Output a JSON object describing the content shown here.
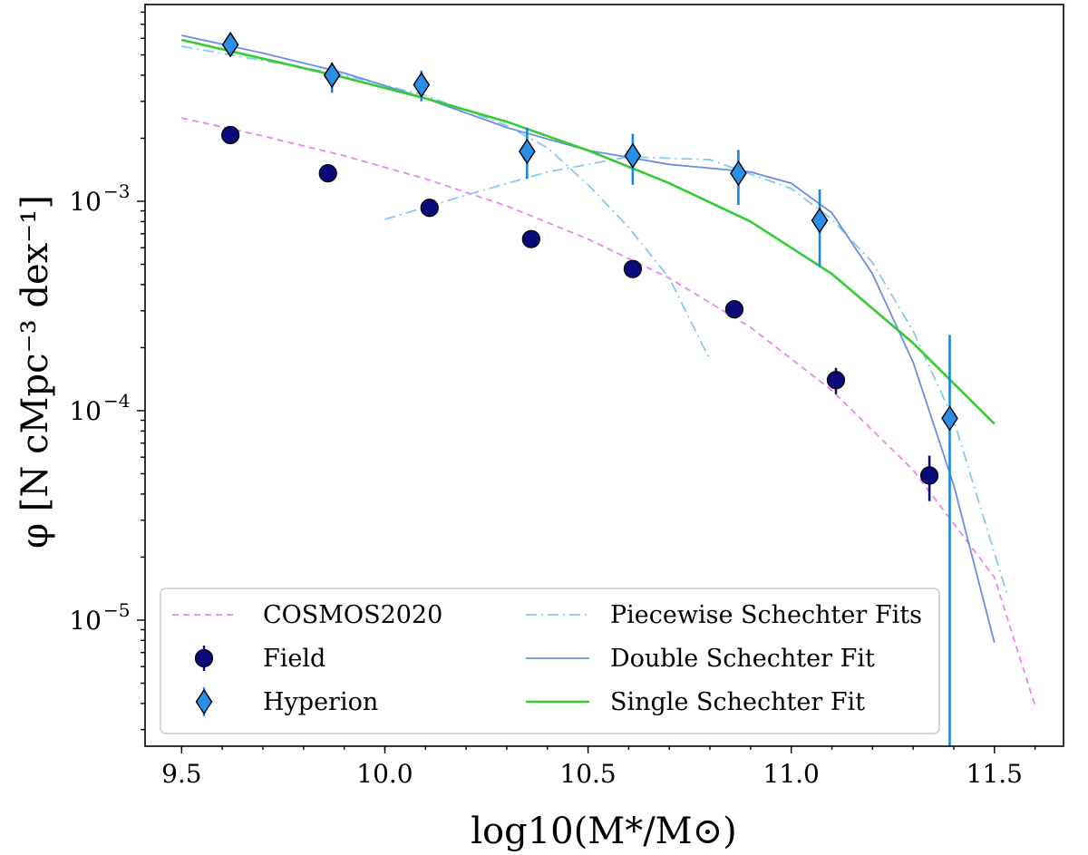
{
  "chart_data": {
    "type": "scatter",
    "title": "",
    "xlabel": "log10(M*/M⊙)",
    "ylabel": "φ [N cMpc⁻³ dex⁻¹]",
    "x_ticks": [
      9.5,
      10.0,
      10.5,
      11.0,
      11.5
    ],
    "x_tick_labels": [
      "9.5",
      "10.0",
      "10.5",
      "11.0",
      "11.5"
    ],
    "y_ticks": [
      1e-05,
      0.0001,
      0.001
    ],
    "y_tick_labels": [
      "10",
      "10",
      "10"
    ],
    "y_tick_exponents": [
      "−5",
      "−4",
      "−3"
    ],
    "xlim": [
      9.41,
      11.67
    ],
    "ylim": [
      2.5e-06,
      0.0087
    ],
    "y_scale": "log",
    "grid": false,
    "legend_position": "lower-left",
    "series": [
      {
        "name": "Field",
        "kind": "points",
        "marker": "circle",
        "color": "#0a0a7a",
        "x": [
          9.62,
          9.86,
          10.11,
          10.36,
          10.61,
          10.86,
          11.11,
          11.34
        ],
        "y": [
          0.00207,
          0.00136,
          0.00093,
          0.00066,
          0.000475,
          0.000305,
          0.00014,
          4.9e-05
        ],
        "y_err_low": [
          3e-05,
          3e-05,
          3e-05,
          2e-05,
          2e-05,
          1e-05,
          2e-05,
          1.2e-05
        ],
        "y_err_high": [
          3e-05,
          3e-05,
          3e-05,
          2e-05,
          2e-05,
          1e-05,
          2e-05,
          1.2e-05
        ]
      },
      {
        "name": "Hyperion",
        "kind": "points",
        "marker": "diamond",
        "color": "#2b8ee8",
        "err_color": "#1a86e0",
        "x": [
          9.62,
          9.87,
          10.09,
          10.35,
          10.61,
          10.87,
          11.07,
          11.39
        ],
        "y": [
          0.0056,
          0.004,
          0.0036,
          0.00173,
          0.00165,
          0.00136,
          0.00081,
          9.2e-05
        ],
        "y_err_low": [
          0.0006,
          0.0007,
          0.0006,
          0.00045,
          0.00045,
          0.0004,
          0.00032,
          9.1e-05
        ],
        "y_err_high": [
          0.0006,
          0.0006,
          0.0006,
          0.00052,
          0.00045,
          0.0004,
          0.00033,
          0.000138
        ]
      },
      {
        "name": "COSMOS2020",
        "kind": "line",
        "style": "dashed",
        "color": "#ee82ee",
        "x": [
          9.5,
          9.7,
          9.9,
          10.1,
          10.3,
          10.5,
          10.7,
          10.9,
          11.1,
          11.3,
          11.5,
          11.6
        ],
        "y": [
          0.0025,
          0.00205,
          0.00165,
          0.00128,
          0.00095,
          0.00066,
          0.00043,
          0.00025,
          0.000125,
          5.2e-05,
          1.6e-05,
          3.9e-06
        ]
      },
      {
        "name": "Piecewise Schechter Fits",
        "kind": "line",
        "style": "dashdot",
        "color": "#87c8ee",
        "x": [
          9.5,
          9.7,
          9.9,
          10.1,
          10.3,
          10.4,
          10.5,
          10.6,
          10.7,
          10.8
        ],
        "y": [
          0.0055,
          0.0047,
          0.004,
          0.0032,
          0.0023,
          0.0018,
          0.0012,
          0.00075,
          0.00043,
          0.000175
        ]
      },
      {
        "name": "",
        "kind": "line",
        "style": "dashdot",
        "color": "#87c8ee",
        "x": [
          10.0,
          10.2,
          10.4,
          10.6,
          10.8,
          11.0,
          11.1,
          11.2,
          11.3,
          11.4,
          11.53
        ],
        "y": [
          0.00082,
          0.00107,
          0.00138,
          0.00163,
          0.00158,
          0.00115,
          0.00082,
          0.00051,
          0.00024,
          9e-05,
          1.35e-05
        ]
      },
      {
        "name": "Double Schechter Fit",
        "kind": "line",
        "style": "solid",
        "color": "#6a8ee6",
        "x": [
          9.5,
          9.7,
          9.9,
          10.1,
          10.3,
          10.5,
          10.7,
          10.9,
          11.0,
          11.1,
          11.2,
          11.3,
          11.4,
          11.5
        ],
        "y": [
          0.0062,
          0.0051,
          0.0041,
          0.0031,
          0.00225,
          0.00175,
          0.0015,
          0.00138,
          0.00122,
          0.00088,
          0.00045,
          0.00017,
          4.4e-05,
          7.8e-06
        ]
      },
      {
        "name": "Single Schechter Fit",
        "kind": "line",
        "style": "solid",
        "color": "#33cc33",
        "x": [
          9.5,
          9.7,
          9.9,
          10.1,
          10.3,
          10.5,
          10.7,
          10.9,
          11.1,
          11.3,
          11.5
        ],
        "y": [
          0.0059,
          0.0048,
          0.0039,
          0.0031,
          0.0024,
          0.00175,
          0.00122,
          0.0008,
          0.00045,
          0.00021,
          8.65e-05
        ]
      }
    ],
    "legend": [
      {
        "label": "COSMOS2020",
        "style": "dashed",
        "color": "#ee82ee"
      },
      {
        "label": "Field",
        "style": "circle",
        "color": "#0a0a7a"
      },
      {
        "label": "Hyperion",
        "style": "diamond",
        "color": "#2b8ee8"
      },
      {
        "label": "Piecewise Schechter Fits",
        "style": "dashdot",
        "color": "#87c8ee"
      },
      {
        "label": "Double Schechter Fit",
        "style": "solid",
        "color": "#6a8ee6"
      },
      {
        "label": "Single Schechter Fit",
        "style": "solid",
        "color": "#33cc33"
      }
    ]
  }
}
